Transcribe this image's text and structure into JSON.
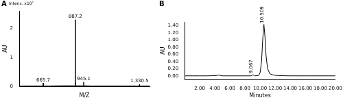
{
  "chart_data": [
    {
      "type": "line",
      "title": "A",
      "subtitle": "Intens. x10⁷",
      "xlabel": "M/Z",
      "ylabel": "AU",
      "x": [
        500,
        660,
        665.2,
        665.7,
        666.2,
        700,
        800,
        880,
        886.7,
        887.2,
        887.7,
        888.2,
        888.7,
        889.2,
        889.7,
        900,
        940,
        944.6,
        945.1,
        945.6,
        1000,
        1200,
        1325,
        1330.0,
        1330.5,
        1331.0,
        1400
      ],
      "values": [
        0.02,
        0.02,
        0.02,
        0.12,
        0.02,
        0.02,
        0.03,
        0.03,
        0.03,
        2.3,
        0.03,
        0.45,
        0.03,
        0.12,
        0.03,
        0.03,
        0.03,
        0.03,
        0.15,
        0.03,
        0.02,
        0.02,
        0.02,
        0.02,
        0.08,
        0.02,
        0.02
      ],
      "color": "#000000",
      "xlim": [
        500,
        1400
      ],
      "ylim": [
        0,
        2.6
      ],
      "yticks": [
        0,
        1,
        2
      ],
      "tick_labels": "y",
      "grid": false,
      "annotations": [
        {
          "text": "665.7",
          "x": 665.7,
          "y": 0.12
        },
        {
          "text": "887.2",
          "x": 887.2,
          "y": 2.3
        },
        {
          "text": "945.1",
          "x": 945.1,
          "y": 0.15
        },
        {
          "text": "1,330.5",
          "x": 1330.5,
          "y": 0.08
        }
      ]
    },
    {
      "type": "line",
      "title": "B",
      "xlabel": "Minutes",
      "ylabel": "AU",
      "x": [
        0,
        1,
        2,
        3,
        4,
        4.5,
        5,
        6,
        7,
        8,
        8.8,
        9.067,
        9.3,
        9.8,
        10.0,
        10.2,
        10.35,
        10.509,
        10.65,
        10.8,
        11.0,
        11.3,
        11.8,
        12.5,
        14,
        16,
        18,
        20
      ],
      "values": [
        0,
        0,
        0,
        0,
        0.005,
        0.02,
        0,
        0,
        0,
        0,
        0,
        0.03,
        0,
        0.01,
        0.08,
        0.4,
        1.0,
        1.43,
        1.1,
        0.55,
        0.2,
        0.06,
        0.02,
        0.005,
        0,
        0,
        0,
        0
      ],
      "color": "#000000",
      "xlim": [
        0,
        20
      ],
      "xticks": [
        {
          "value": 2,
          "label": "2.00"
        },
        {
          "value": 4,
          "label": "4.00"
        },
        {
          "value": 6,
          "label": "6.00"
        },
        {
          "value": 8,
          "label": "8.00"
        },
        {
          "value": 10,
          "label": "10.00"
        },
        {
          "value": 12,
          "label": "12.00"
        },
        {
          "value": 14,
          "label": "14.00"
        },
        {
          "value": 16,
          "label": "16.00"
        },
        {
          "value": 18,
          "label": "18.00"
        },
        {
          "value": 20,
          "label": "20.00"
        }
      ],
      "ylim": [
        -0.1,
        1.5
      ],
      "yticks": [
        {
          "value": 0,
          "label": "0.00"
        },
        {
          "value": 0.2,
          "label": "0.20"
        },
        {
          "value": 0.4,
          "label": "0.40"
        },
        {
          "value": 0.6,
          "label": "0.60"
        },
        {
          "value": 0.8,
          "label": "0.80"
        },
        {
          "value": 1.0,
          "label": "1.00"
        },
        {
          "value": 1.2,
          "label": "1.20"
        },
        {
          "value": 1.4,
          "label": "1.40"
        }
      ],
      "grid": false,
      "annotations": [
        {
          "text": "9.067",
          "x": 9.067,
          "y": 0.03
        },
        {
          "text": "10.509",
          "x": 10.509,
          "y": 1.43
        }
      ]
    }
  ]
}
